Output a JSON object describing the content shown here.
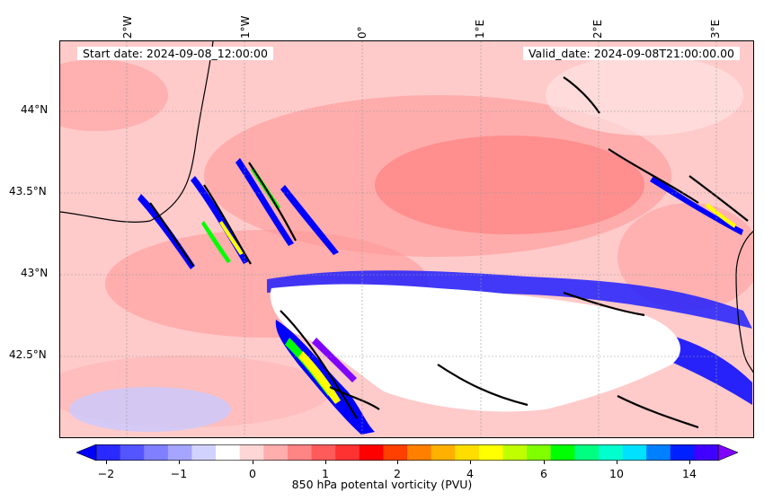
{
  "map": {
    "start_date": "Start date: 2024-09-08_12:00:00",
    "valid_date": "Valid_date: 2024-09-08T21:00:00.00",
    "lon_labels": [
      "2°W",
      "1°W",
      "0°",
      "1°E",
      "2°E",
      "3°E"
    ],
    "lat_labels": [
      "44°N",
      "43.5°N",
      "43°N",
      "42.5°N"
    ]
  },
  "colorbar": {
    "label": "850 hPa potental vorticity (PVU)",
    "ticks": [
      "−2",
      "−1",
      "0",
      "1",
      "2",
      "4",
      "6",
      "10",
      "14"
    ],
    "colors": [
      "#0000ff",
      "#2a2aff",
      "#5555ff",
      "#7f7fff",
      "#a5a5ff",
      "#d2d2ff",
      "#ffffff",
      "#ffd6d6",
      "#ffadad",
      "#ff8484",
      "#ff5b5b",
      "#ff3232",
      "#ff0000",
      "#ff4000",
      "#ff8000",
      "#ffb000",
      "#ffdd00",
      "#ffff00",
      "#c0ff00",
      "#80ff00",
      "#00ff00",
      "#00ff80",
      "#00ffcc",
      "#00e0ff",
      "#0080ff",
      "#0020ff",
      "#4000ff",
      "#8000ff"
    ]
  }
}
